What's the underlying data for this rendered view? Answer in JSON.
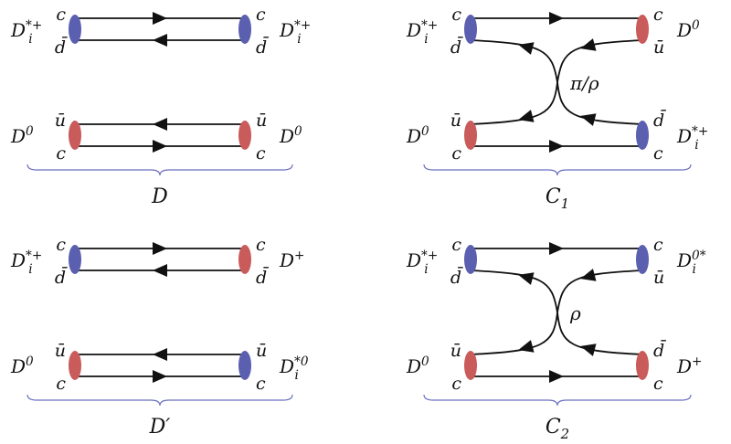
{
  "colors": {
    "blue": "#5b5fb0",
    "red": "#c95b5b",
    "brace": "#6a6fc0",
    "label_red": "#c0504d",
    "line": "#111111"
  },
  "panels": [
    {
      "id": "D",
      "label": "D",
      "top": {
        "left_meson": "D_i^{*+}",
        "right_meson": "D_i^{*+}",
        "left_quarks": [
          "c",
          "d̄"
        ],
        "right_quarks": [
          "c",
          "d̄"
        ],
        "left_color": "blue",
        "right_color": "blue"
      },
      "bottom": {
        "left_meson": "D^0",
        "right_meson": "D^0",
        "left_quarks": [
          "ū",
          "c"
        ],
        "right_quarks": [
          "ū",
          "c"
        ],
        "left_color": "red",
        "right_color": "red"
      }
    },
    {
      "id": "C1",
      "label": "C_1",
      "exchange": "π/ρ",
      "top": {
        "left_meson": "D_i^{*+}",
        "right_meson": "D^0",
        "left_quarks": [
          "c",
          "d̄"
        ],
        "right_quarks": [
          "c",
          "ū"
        ],
        "left_color": "blue",
        "right_color": "red"
      },
      "bottom": {
        "left_meson": "D^0",
        "right_meson": "D_i^{*+}",
        "left_quarks": [
          "ū",
          "c"
        ],
        "right_quarks": [
          "d̄",
          "c"
        ],
        "left_color": "red",
        "right_color": "blue"
      }
    },
    {
      "id": "Dprime",
      "label": "D′",
      "top": {
        "left_meson": "D_i^{*+}",
        "right_meson": "D^+",
        "left_quarks": [
          "c",
          "d̄"
        ],
        "right_quarks": [
          "c",
          "d̄"
        ],
        "left_color": "blue",
        "right_color": "red"
      },
      "bottom": {
        "left_meson": "D^0",
        "right_meson": "D_i^{*0}",
        "left_quarks": [
          "ū",
          "c"
        ],
        "right_quarks": [
          "ū",
          "c"
        ],
        "left_color": "red",
        "right_color": "blue"
      }
    },
    {
      "id": "C2",
      "label": "C_2",
      "exchange": "ρ",
      "top": {
        "left_meson": "D_i^{*+}",
        "right_meson": "D_i^{0*}",
        "left_quarks": [
          "c",
          "d̄"
        ],
        "right_quarks": [
          "c",
          "ū"
        ],
        "left_color": "blue",
        "right_color": "blue"
      },
      "bottom": {
        "left_meson": "D^0",
        "right_meson": "D^+",
        "left_quarks": [
          "ū",
          "c"
        ],
        "right_quarks": [
          "d̄",
          "c"
        ],
        "left_color": "red",
        "right_color": "red"
      }
    }
  ]
}
